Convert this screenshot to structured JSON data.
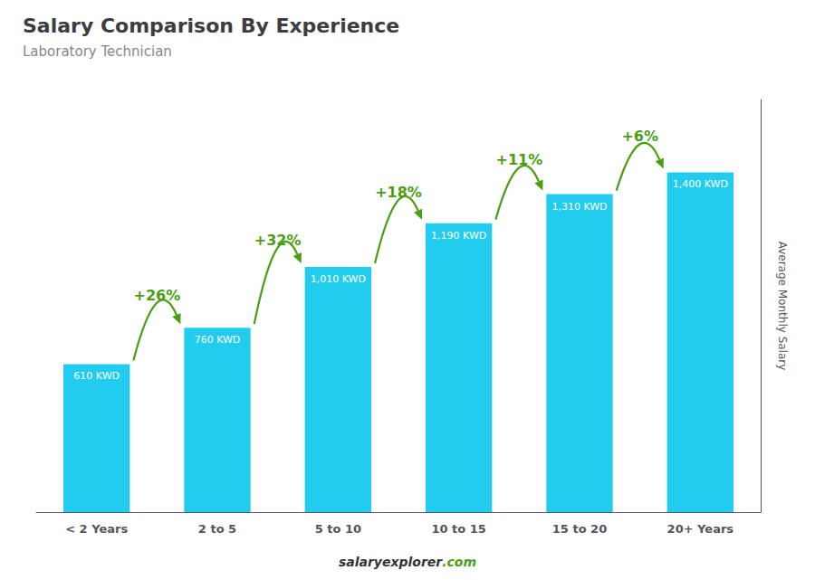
{
  "chart_data": {
    "type": "bar",
    "title": "Salary Comparison By Experience",
    "subtitle": "Laboratory Technician",
    "ylabel": "Average Monthly Salary",
    "categories": [
      "< 2 Years",
      "2 to 5",
      "5 to 10",
      "10 to 15",
      "15 to 20",
      "20+ Years"
    ],
    "values": [
      610,
      760,
      1010,
      1190,
      1310,
      1400
    ],
    "value_labels": [
      "610 KWD",
      "760 KWD",
      "1,010 KWD",
      "1,190 KWD",
      "1,310 KWD",
      "1,400 KWD"
    ],
    "data_labels": true,
    "color": "#22ccee",
    "ylim": [
      0,
      1700
    ],
    "yticks": [],
    "tick_labels": "x",
    "grid": false,
    "annotations": [
      "+26%",
      "+32%",
      "+18%",
      "+11%",
      "+6%",
      "salary",
      "explorer",
      ".com"
    ]
  }
}
